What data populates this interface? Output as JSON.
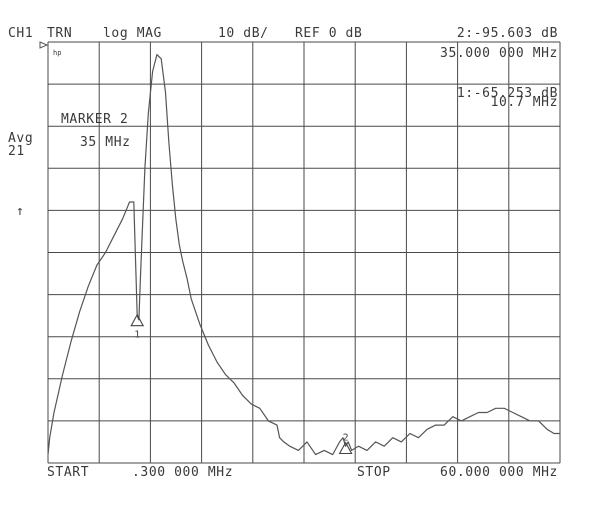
{
  "header": {
    "channel": "CH1",
    "measurement": "TRN",
    "format": "log MAG",
    "scale": "10 dB/",
    "reference": "REF 0 dB",
    "active_marker_readout": "2:-95.603 dB"
  },
  "active_marker_frequency": "35.000 000 MHz",
  "marker1_readout": {
    "value": "1:-65.253 dB",
    "frequency": "10.7 MHz"
  },
  "marker_label": {
    "title": "MARKER 2",
    "frequency": "35 MHz"
  },
  "left_status": {
    "averaging": "Avg",
    "averaging_count": "21",
    "reference_arrow": "↑"
  },
  "logo": "hp",
  "footer": {
    "start_label": "START",
    "start_value": ".300 000 MHz",
    "stop_label": "STOP",
    "stop_value": "60.000 000 MHz"
  },
  "markers": [
    {
      "id": "1",
      "frequency_mhz": 10.7,
      "level_db": -65.253
    },
    {
      "id": "2",
      "frequency_mhz": 35.0,
      "level_db": -95.603
    }
  ],
  "chart_data": {
    "type": "line",
    "x_unit": "MHz",
    "y_unit": "dB",
    "xlim": [
      0.3,
      60.0
    ],
    "ylim": [
      -100,
      0
    ],
    "grid": true,
    "grid_divisions": {
      "x": 10,
      "y": 10
    },
    "trace_color": "#555555",
    "series": [
      {
        "x": [
          0.3,
          0.5,
          1.0,
          2.0,
          3.0,
          4.0,
          5.0,
          6.0,
          7.0,
          8.0,
          9.0,
          9.8,
          10.3,
          10.7,
          10.9,
          11.1,
          11.3,
          11.6,
          12.0,
          12.5,
          13.0,
          13.5,
          14.0,
          14.4,
          14.8,
          15.2,
          15.6,
          16.0,
          16.5,
          17.0,
          17.5,
          18.0,
          19.0,
          20.0,
          21.0,
          22.0,
          23.0,
          24.0,
          25.0,
          26.0,
          27.0,
          27.3,
          27.8,
          28.5,
          29.5,
          30.5,
          31.5,
          32.5,
          33.5,
          34.3,
          34.7,
          35.0,
          35.3,
          35.7,
          36.5,
          37.5,
          38.5,
          39.5,
          40.5,
          41.5,
          42.5,
          43.5,
          44.5,
          45.5,
          46.5,
          47.5,
          48.5,
          49.5,
          50.5,
          51.5,
          52.5,
          53.5,
          54.5,
          55.5,
          56.5,
          57.5,
          58.5,
          59.3,
          60.0
        ],
        "y": [
          -98,
          -94,
          -88,
          -79,
          -71,
          -64,
          -58,
          -53,
          -50,
          -46,
          -42,
          -38,
          -38,
          -65,
          -66,
          -55,
          -45,
          -30,
          -17,
          -7,
          -3,
          -4,
          -12,
          -24,
          -34,
          -42,
          -48,
          -52,
          -56,
          -61,
          -64,
          -67,
          -72,
          -76,
          -79,
          -81,
          -84,
          -86,
          -87,
          -90,
          -91,
          -94,
          -95,
          -96,
          -97,
          -95,
          -98,
          -97,
          -98,
          -95,
          -94,
          -96,
          -95,
          -97,
          -96,
          -97,
          -95,
          -96,
          -94,
          -95,
          -93,
          -94,
          -92,
          -91,
          -91,
          -89,
          -90,
          -89,
          -88,
          -88,
          -87,
          -87,
          -88,
          -89,
          -90,
          -90,
          -92,
          -93,
          -93
        ]
      }
    ]
  }
}
